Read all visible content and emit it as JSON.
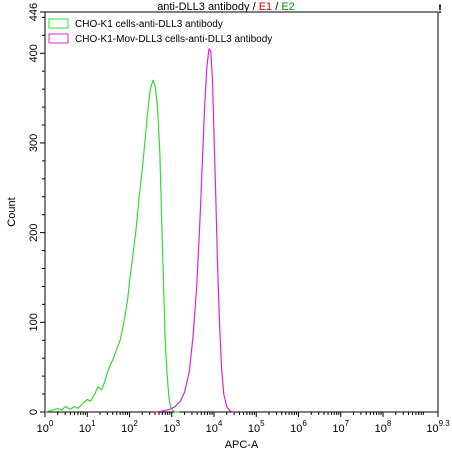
{
  "title": {
    "main": "anti-DLL3 antibody",
    "sep1": " / ",
    "e1": "E1",
    "sep2": " / ",
    "e2": "E2"
  },
  "corner_marker": "!",
  "chart_data": {
    "type": "line",
    "xlabel": "APC-A",
    "ylabel": "Count",
    "xscale": "log",
    "xlim": [
      1,
      2000000000
    ],
    "ylim": [
      0,
      446
    ],
    "x_ticks": [
      {
        "base": "10",
        "exp": "0",
        "value": 1
      },
      {
        "base": "10",
        "exp": "1",
        "value": 10
      },
      {
        "base": "10",
        "exp": "2",
        "value": 100
      },
      {
        "base": "10",
        "exp": "3",
        "value": 1000
      },
      {
        "base": "10",
        "exp": "4",
        "value": 10000
      },
      {
        "base": "10",
        "exp": "5",
        "value": 100000
      },
      {
        "base": "10",
        "exp": "6",
        "value": 1000000
      },
      {
        "base": "10",
        "exp": "7",
        "value": 10000000
      },
      {
        "base": "10",
        "exp": "8",
        "value": 100000000
      },
      {
        "base": "10",
        "exp": "9.3",
        "value": 2000000000
      }
    ],
    "y_ticks": [
      "0",
      "100",
      "200",
      "300",
      "400",
      "446"
    ],
    "y_tick_values": [
      0,
      100,
      200,
      300,
      400,
      446
    ],
    "legend_position": "top-left",
    "series": [
      {
        "name": "CHO-K1 cells-anti-DLL3 antibody",
        "color": "#33dd33",
        "points": [
          [
            1,
            0
          ],
          [
            1.5,
            2
          ],
          [
            2,
            4
          ],
          [
            2.5,
            2
          ],
          [
            3,
            6
          ],
          [
            4,
            3
          ],
          [
            5,
            6
          ],
          [
            6,
            4
          ],
          [
            8,
            10
          ],
          [
            10,
            14
          ],
          [
            12,
            12
          ],
          [
            15,
            20
          ],
          [
            18,
            28
          ],
          [
            22,
            25
          ],
          [
            26,
            34
          ],
          [
            30,
            44
          ],
          [
            35,
            52
          ],
          [
            40,
            58
          ],
          [
            50,
            70
          ],
          [
            60,
            80
          ],
          [
            70,
            95
          ],
          [
            80,
            110
          ],
          [
            90,
            125
          ],
          [
            100,
            145
          ],
          [
            120,
            175
          ],
          [
            140,
            200
          ],
          [
            170,
            240
          ],
          [
            200,
            270
          ],
          [
            230,
            300
          ],
          [
            270,
            335
          ],
          [
            310,
            360
          ],
          [
            360,
            370
          ],
          [
            410,
            362
          ],
          [
            460,
            340
          ],
          [
            520,
            290
          ],
          [
            580,
            210
          ],
          [
            640,
            140
          ],
          [
            700,
            80
          ],
          [
            780,
            40
          ],
          [
            860,
            15
          ],
          [
            950,
            5
          ],
          [
            1050,
            2
          ],
          [
            1200,
            0
          ],
          [
            1500,
            0
          ]
        ]
      },
      {
        "name": "CHO-K1-Mov-DLL3 cells-anti-DLL3 antibody",
        "color": "#dd22dd",
        "points": [
          [
            400,
            0
          ],
          [
            600,
            1
          ],
          [
            900,
            3
          ],
          [
            1200,
            6
          ],
          [
            1600,
            12
          ],
          [
            2000,
            22
          ],
          [
            2600,
            45
          ],
          [
            3200,
            85
          ],
          [
            3900,
            140
          ],
          [
            4600,
            210
          ],
          [
            5300,
            280
          ],
          [
            6000,
            340
          ],
          [
            6800,
            385
          ],
          [
            7600,
            405
          ],
          [
            8400,
            402
          ],
          [
            9200,
            370
          ],
          [
            10000,
            310
          ],
          [
            11000,
            240
          ],
          [
            12000,
            170
          ],
          [
            13500,
            100
          ],
          [
            15000,
            50
          ],
          [
            17000,
            20
          ],
          [
            20000,
            6
          ],
          [
            24000,
            1
          ],
          [
            30000,
            0
          ]
        ]
      }
    ]
  }
}
